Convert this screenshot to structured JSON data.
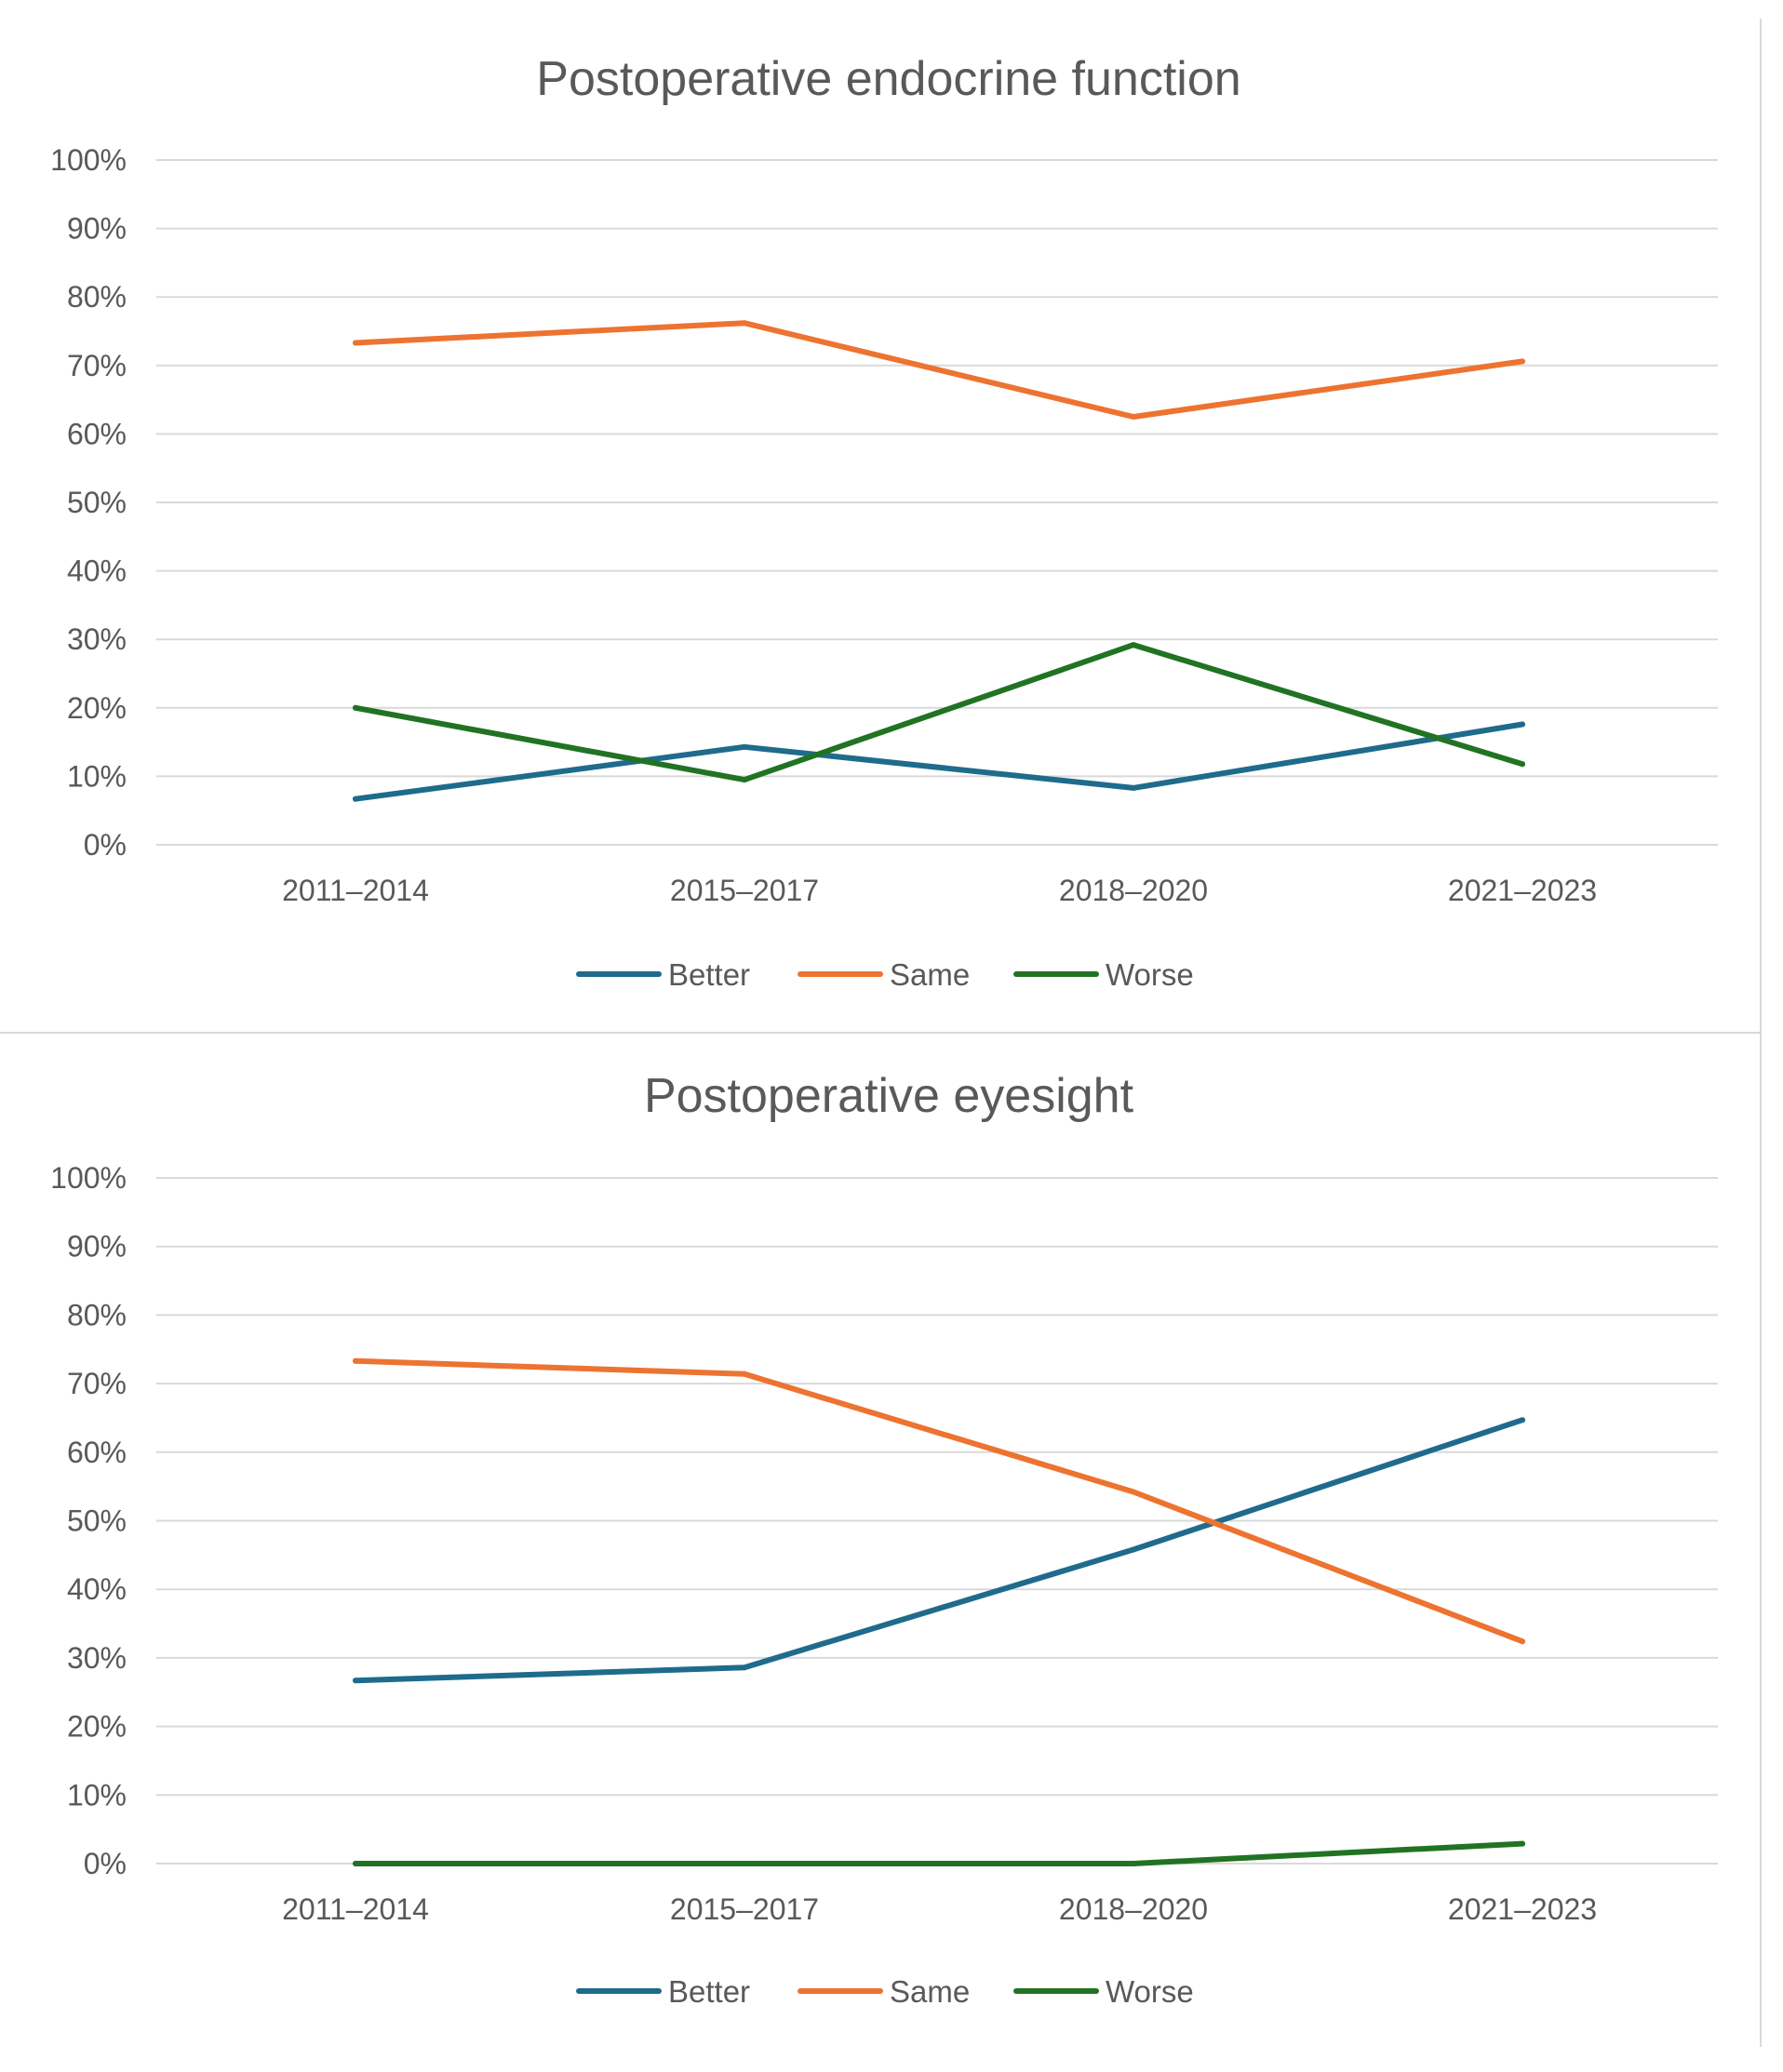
{
  "colors": {
    "better": "#1f6b8c",
    "same": "#ed7331",
    "worse": "#217323",
    "grid": "#d9d9d9",
    "text": "#595959"
  },
  "chart_data": [
    {
      "type": "line",
      "title": "Postoperative endocrine function",
      "xlabel": "",
      "ylabel": "",
      "ylim": [
        0,
        100
      ],
      "y_ticks": [
        "0%",
        "10%",
        "20%",
        "30%",
        "40%",
        "50%",
        "60%",
        "70%",
        "80%",
        "90%",
        "100%"
      ],
      "categories": [
        "2011–2014",
        "2015–2017",
        "2018–2020",
        "2021–2023"
      ],
      "legend_position": "bottom",
      "grid": true,
      "series": [
        {
          "name": "Better",
          "color_key": "better",
          "values": [
            6.7,
            14.3,
            8.3,
            17.6
          ]
        },
        {
          "name": "Same",
          "color_key": "same",
          "values": [
            73.3,
            76.2,
            62.5,
            70.6
          ]
        },
        {
          "name": "Worse",
          "color_key": "worse",
          "values": [
            20.0,
            9.5,
            29.2,
            11.8
          ]
        }
      ]
    },
    {
      "type": "line",
      "title": "Postoperative eyesight",
      "xlabel": "",
      "ylabel": "",
      "ylim": [
        0,
        100
      ],
      "y_ticks": [
        "0%",
        "10%",
        "20%",
        "30%",
        "40%",
        "50%",
        "60%",
        "70%",
        "80%",
        "90%",
        "100%"
      ],
      "categories": [
        "2011–2014",
        "2015–2017",
        "2018–2020",
        "2021–2023"
      ],
      "legend_position": "bottom",
      "grid": true,
      "series": [
        {
          "name": "Better",
          "color_key": "better",
          "values": [
            26.7,
            28.6,
            45.8,
            64.7
          ]
        },
        {
          "name": "Same",
          "color_key": "same",
          "values": [
            73.3,
            71.4,
            54.2,
            32.4
          ]
        },
        {
          "name": "Worse",
          "color_key": "worse",
          "values": [
            0,
            0,
            0,
            2.9
          ]
        }
      ]
    }
  ]
}
